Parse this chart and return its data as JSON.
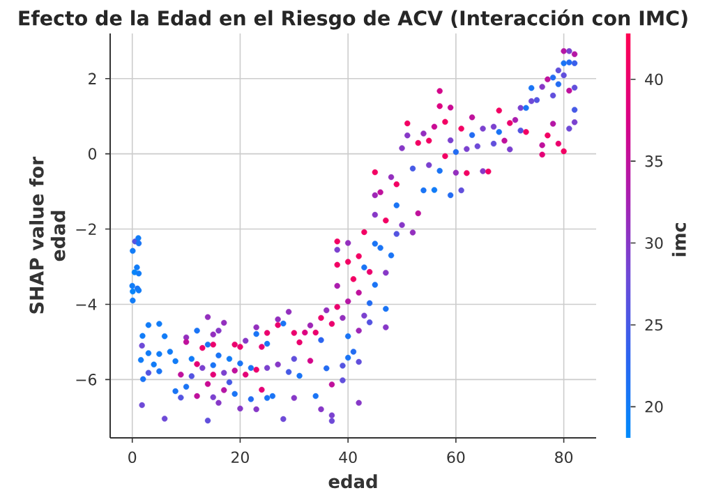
{
  "chart_data": {
    "type": "scatter",
    "title": "Efecto de la Edad en el Riesgo de ACV (Interacción con IMC)",
    "xlabel": "edad",
    "ylabel": "SHAP value for edad",
    "clabel": "imc",
    "x": [
      0.08,
      0.52,
      1.12,
      1.2,
      0.86,
      0.43,
      1.2,
      0,
      0.95,
      0.08,
      1.2,
      0.08,
      1.9,
      1.8,
      1.6,
      1.8,
      2,
      3,
      3,
      3,
      4,
      5,
      5,
      5,
      6,
      6,
      7,
      8,
      8,
      9,
      9,
      10,
      10,
      10,
      11,
      11,
      12,
      12,
      12,
      13,
      13,
      14,
      14,
      14,
      14,
      15,
      15,
      15,
      15,
      15,
      16,
      16,
      16,
      17,
      17,
      17,
      18,
      18,
      19,
      19,
      19,
      20,
      20,
      20,
      21,
      21,
      22,
      22,
      23,
      23,
      23,
      23,
      24,
      24,
      25,
      25,
      25,
      25,
      26,
      27,
      27,
      28,
      28,
      29,
      30,
      30,
      31,
      32,
      33,
      34,
      35,
      35,
      34,
      35,
      36,
      37,
      37,
      37,
      37,
      27,
      29,
      31,
      33,
      36,
      30,
      38,
      38,
      38,
      38,
      38,
      39,
      39,
      39,
      40,
      40,
      40,
      40,
      40,
      41,
      41,
      42,
      42,
      42,
      42,
      42,
      43,
      43,
      43,
      44,
      44,
      44,
      45,
      45,
      45,
      45,
      45,
      46,
      46,
      47,
      47,
      47,
      47,
      48,
      48,
      49,
      49,
      49,
      50,
      50,
      51,
      51,
      52,
      52,
      53,
      53,
      54,
      54,
      55,
      55,
      56,
      56,
      57,
      57,
      57,
      58,
      58,
      59,
      59,
      59,
      60,
      60,
      61,
      61,
      62,
      62,
      63,
      63,
      64,
      65,
      65,
      66,
      67,
      67,
      68,
      68,
      69,
      70,
      70,
      71,
      72,
      72,
      73,
      73,
      74,
      74,
      75,
      76,
      76,
      76,
      77,
      77,
      78,
      78,
      78,
      79,
      79,
      79,
      80,
      80,
      80,
      80,
      81,
      81,
      81,
      81,
      82,
      82,
      82,
      82,
      82
    ],
    "values": [
      -2.58,
      -2.33,
      -2.24,
      -2.38,
      -3.02,
      -3.15,
      -3.18,
      -3.51,
      -3.58,
      -3.66,
      -3.63,
      -3.9,
      -4.84,
      -5.1,
      -5.48,
      -6.68,
      -5.99,
      -4.55,
      -5.3,
      -5.82,
      -5.6,
      -4.52,
      -5.32,
      -5.78,
      -7.04,
      -4.85,
      -5.26,
      -5.51,
      -6.31,
      -5.87,
      -6.48,
      -4.88,
      -5,
      -6.19,
      -5.45,
      -5.91,
      -4.7,
      -5.59,
      -6.44,
      -5.16,
      -5.69,
      -4.34,
      -5.07,
      -6.12,
      -7.09,
      -4.8,
      -5.07,
      -5.62,
      -5.87,
      -6.47,
      -4.7,
      -5.36,
      -6.62,
      -4.49,
      -5.82,
      -6.28,
      -5.45,
      -6.07,
      -5.07,
      -5.76,
      -6.38,
      -5.13,
      -5.57,
      -6.77,
      -4.97,
      -5.87,
      -5.69,
      -6.52,
      -4.61,
      -4.79,
      -5.74,
      -6.79,
      -5.13,
      -6.27,
      -4.76,
      -5.05,
      -5.69,
      -6.49,
      -6.44,
      -4.4,
      -4.55,
      -4.51,
      -7.05,
      -4.2,
      -4.76,
      -6.49,
      -5.01,
      -4.75,
      -4.56,
      -4.75,
      -4.36,
      -4.95,
      -6.44,
      -6.79,
      -4.16,
      -4.52,
      -6.13,
      -6.95,
      -7.1,
      -5.6,
      -5.8,
      -5.9,
      -5.5,
      -5.7,
      -5.45,
      -2.33,
      -2.55,
      -2.95,
      -3.51,
      -4.07,
      -4.36,
      -5.63,
      -6.02,
      -2.37,
      -2.87,
      -3.92,
      -4.85,
      -5.42,
      -3.33,
      -5.26,
      -2.72,
      -3.69,
      -4.7,
      -5.53,
      -6.62,
      -2.08,
      -3.02,
      -4.3,
      -3.14,
      -3.97,
      -4.48,
      -2.39,
      -3.48,
      -0.49,
      -1.1,
      -1.62,
      -1.02,
      -2.5,
      -1.77,
      -3.16,
      -4.12,
      -4.61,
      -2.7,
      -0.62,
      -0.81,
      -1.37,
      -2.13,
      -1.89,
      0.15,
      0.81,
      0.49,
      -2.09,
      -0.39,
      0.29,
      -1.58,
      -0.97,
      0.54,
      0.35,
      -0.3,
      0.72,
      -0.96,
      1.67,
      1.27,
      -0.45,
      0.85,
      -0.06,
      1.23,
      -1.1,
      0.36,
      0.05,
      -0.5,
      0.67,
      -0.97,
      -0.51,
      0.13,
      0.97,
      0.5,
      0.2,
      -0.46,
      0.67,
      -0.47,
      0.72,
      0.27,
      1.15,
      0.58,
      0.35,
      0.82,
      0.12,
      0.9,
      1.22,
      0.62,
      1.22,
      0.58,
      1.75,
      1.4,
      1.43,
      1.78,
      0.23,
      -0.02,
      1.98,
      0.49,
      2.03,
      1.55,
      0.8,
      2.22,
      1.85,
      0.27,
      2.73,
      2.41,
      2.09,
      0.07,
      2.73,
      2.43,
      1.68,
      0.67,
      2.65,
      2.41,
      1.76,
      1.17,
      0.84
    ],
    "cvalues": [
      20,
      26,
      20,
      21,
      20,
      19,
      20,
      20,
      21,
      19,
      20,
      20,
      20,
      28,
      20,
      28,
      21,
      20,
      20,
      26,
      20,
      20,
      20,
      21,
      28,
      20,
      20,
      20,
      21,
      35,
      26,
      31,
      35,
      21,
      20,
      26,
      21,
      39,
      35,
      40,
      29,
      31,
      21,
      36,
      27,
      31,
      40,
      21,
      39,
      29,
      30,
      21,
      30,
      31,
      29,
      34,
      20,
      25,
      40,
      35,
      21,
      40,
      21,
      30,
      30,
      39,
      21,
      22,
      31,
      21,
      40,
      30,
      39,
      39,
      40,
      21,
      29,
      21,
      21,
      31,
      40,
      21,
      28,
      31,
      40,
      30,
      40,
      38,
      32,
      40,
      40,
      23,
      21,
      30,
      31,
      40,
      35,
      29,
      28,
      30,
      25,
      21,
      37,
      22,
      27,
      41,
      29,
      41,
      33,
      40,
      31,
      26,
      27,
      31,
      41,
      34,
      21,
      21,
      41,
      22,
      41,
      35,
      32,
      27,
      30,
      41,
      21,
      29,
      40,
      22,
      26,
      21,
      21,
      41,
      32,
      30,
      35,
      21,
      41,
      30,
      21,
      30,
      21,
      31,
      41,
      21,
      26,
      30,
      30,
      41,
      30,
      31,
      25,
      41,
      35,
      21,
      31,
      41,
      29,
      36,
      20,
      37,
      38,
      21,
      41,
      41,
      36,
      22,
      29,
      22,
      31,
      41,
      27,
      41,
      29,
      35,
      22,
      28,
      30,
      29,
      41,
      29,
      27,
      41,
      21,
      35,
      40,
      29,
      33,
      29,
      26,
      21,
      41,
      21,
      28,
      26,
      30,
      35,
      39,
      35,
      41,
      22,
      27,
      34,
      27,
      22,
      40,
      34,
      21,
      27,
      41,
      29,
      22,
      35,
      28,
      34,
      24,
      27,
      25,
      29
    ],
    "xlim": [
      -4.1,
      86
    ],
    "ylim": [
      -7.55,
      3.2
    ],
    "xticks": [
      0,
      20,
      40,
      60,
      80
    ],
    "yticks": [
      {
        "value": -6,
        "label": "−6"
      },
      {
        "value": -4,
        "label": "−4"
      },
      {
        "value": -2,
        "label": "−2"
      },
      0,
      2
    ],
    "clim": [
      18.1,
      42.8
    ],
    "cticks": [
      20,
      25,
      30,
      35,
      40
    ],
    "grid": true,
    "marker": "circle"
  }
}
